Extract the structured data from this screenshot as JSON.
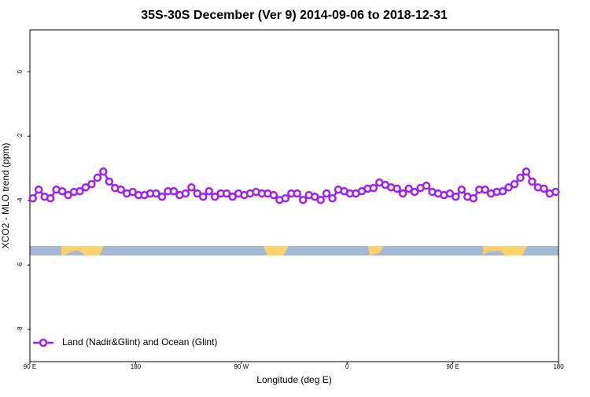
{
  "chart_data": {
    "type": "line",
    "title": "35S-30S December (Ver 9)   2014-09-06 to 2018-12-31",
    "x_label": "Longitude (deg E)",
    "y_label": "XCO2 - MLO trend (ppm)",
    "xlim": [
      90,
      540
    ],
    "xticks": [
      {
        "value": 90,
        "label": "90 E"
      },
      180,
      {
        "value": 270,
        "label": "90 W"
      },
      {
        "value": 360,
        "label": "0"
      },
      {
        "value": 450,
        "label": "90 E"
      },
      {
        "value": 540,
        "label": "180"
      }
    ],
    "ylim": [
      -9,
      1.3
    ],
    "yticks": [
      0,
      -2,
      -4,
      -6,
      -8
    ],
    "legend": "lower left",
    "x": [
      92.5,
      97.5,
      102.5,
      107.5,
      112.5,
      117.5,
      122.5,
      127.5,
      132.5,
      137.5,
      142.5,
      147.5,
      152.5,
      157.5,
      162.5,
      167.5,
      172.5,
      177.5,
      182.5,
      187.5,
      192.5,
      197.5,
      202.5,
      207.5,
      212.5,
      217.5,
      222.5,
      227.5,
      232.5,
      237.5,
      242.5,
      247.5,
      252.5,
      257.5,
      262.5,
      267.5,
      272.5,
      277.5,
      282.5,
      287.5,
      292.5,
      297.5,
      302.5,
      307.5,
      312.5,
      317.5,
      322.5,
      327.5,
      332.5,
      337.5,
      342.5,
      347.5,
      352.5,
      357.5,
      362.5,
      367.5,
      372.5,
      377.5,
      382.5,
      387.5,
      392.5,
      397.5,
      402.5,
      407.5,
      412.5,
      417.5,
      422.5,
      427.5,
      432.5,
      437.5,
      442.5,
      447.5,
      452.5,
      457.5,
      462.5,
      467.5,
      472.5,
      477.5,
      482.5,
      487.5,
      492.5,
      497.5,
      502.5,
      507.5,
      512.5,
      517.5,
      522.5,
      527.5,
      532.5,
      537.5
    ],
    "series": [
      {
        "name": "Land (Nadir&Glint) and Ocean (Glint)",
        "color": "#a020f0",
        "values": [
          -3.93,
          -3.66,
          -3.88,
          -3.93,
          -3.66,
          -3.71,
          -3.83,
          -3.73,
          -3.71,
          -3.59,
          -3.49,
          -3.29,
          -3.1,
          -3.41,
          -3.61,
          -3.66,
          -3.78,
          -3.73,
          -3.83,
          -3.83,
          -3.78,
          -3.78,
          -3.88,
          -3.71,
          -3.71,
          -3.83,
          -3.78,
          -3.59,
          -3.78,
          -3.88,
          -3.71,
          -3.88,
          -3.78,
          -3.78,
          -3.88,
          -3.78,
          -3.83,
          -3.78,
          -3.73,
          -3.78,
          -3.78,
          -3.83,
          -3.98,
          -3.93,
          -3.78,
          -3.78,
          -3.98,
          -3.83,
          -3.88,
          -3.98,
          -3.78,
          -3.93,
          -3.66,
          -3.71,
          -3.78,
          -3.78,
          -3.71,
          -3.63,
          -3.61,
          -3.44,
          -3.51,
          -3.59,
          -3.63,
          -3.78,
          -3.63,
          -3.73,
          -3.61,
          -3.54,
          -3.73,
          -3.78,
          -3.83,
          -3.78,
          -3.88,
          -3.66,
          -3.88,
          -3.93,
          -3.66,
          -3.66,
          -3.78,
          -3.73,
          -3.71,
          -3.59,
          -3.49,
          -3.29,
          -3.1,
          -3.41,
          -3.59,
          -3.63,
          -3.78,
          -3.73
        ]
      }
    ]
  }
}
